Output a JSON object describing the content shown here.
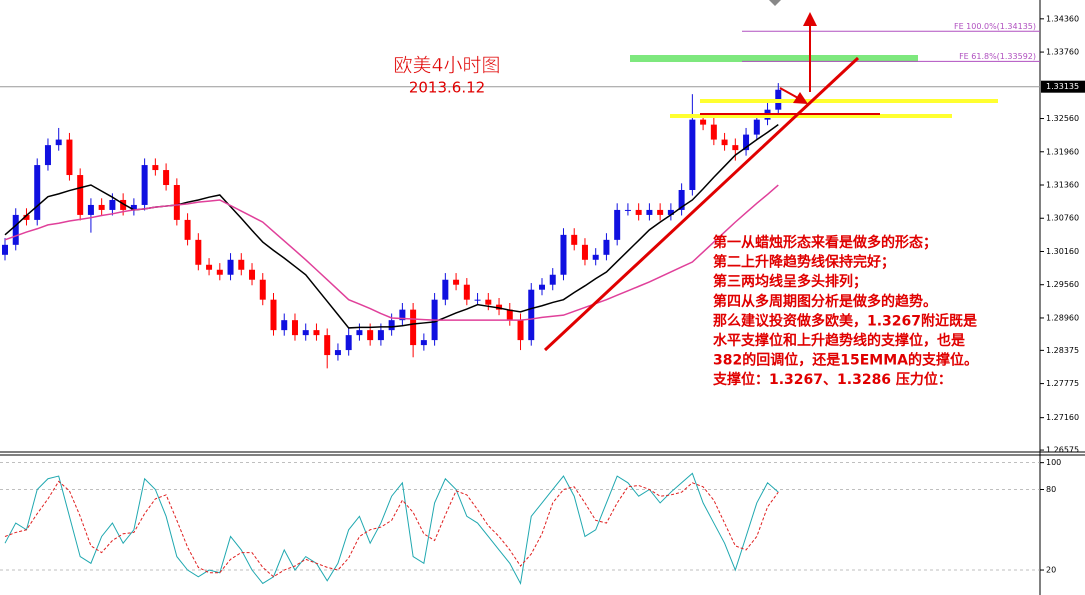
{
  "chart_data": [
    {
      "type": "candlestick",
      "title": "欧美4小时图",
      "subtitle": "2013.6.12",
      "up_color": "#1010e0",
      "down_color": "#ff0000",
      "open": [
        1.301,
        1.3028,
        1.3082,
        1.3073,
        1.3172,
        1.3208,
        1.3218,
        1.3154,
        1.3082,
        1.31,
        1.3091,
        1.3109,
        1.3091,
        1.31,
        1.3172,
        1.3163,
        1.3136,
        1.3073,
        1.3037,
        1.2992,
        1.2983,
        1.2974,
        1.3001,
        1.2983,
        1.2965,
        1.2929,
        1.2874,
        1.2892,
        1.2865,
        1.2874,
        1.2865,
        1.2829,
        1.2838,
        1.2865,
        1.2874,
        1.2856,
        1.2874,
        1.2892,
        1.2911,
        1.2847,
        1.2856,
        1.2929,
        1.2965,
        1.2956,
        1.2929,
        1.2929,
        1.292,
        1.2911,
        1.2892,
        1.2856,
        1.2947,
        1.2956,
        1.2974,
        1.3046,
        1.3028,
        1.3001,
        1.301,
        1.3037,
        1.3091,
        1.3091,
        1.3082,
        1.3091,
        1.3082,
        1.3091,
        1.3127,
        1.3254,
        1.3245,
        1.3218,
        1.3208,
        1.3199,
        1.3227,
        1.3254,
        1.3272
      ],
      "high": [
        1.304,
        1.3094,
        1.3094,
        1.3184,
        1.322,
        1.3239,
        1.323,
        1.3166,
        1.3112,
        1.3112,
        1.3121,
        1.3121,
        1.3112,
        1.3184,
        1.3184,
        1.3175,
        1.3148,
        1.3085,
        1.3049,
        1.3004,
        1.2995,
        1.3013,
        1.3013,
        1.2995,
        1.2977,
        1.2941,
        1.2904,
        1.2904,
        1.2886,
        1.2886,
        1.2877,
        1.285,
        1.2877,
        1.2886,
        1.2886,
        1.2886,
        1.2904,
        1.2923,
        1.2923,
        1.2868,
        1.2941,
        1.2977,
        1.2977,
        1.2968,
        1.2941,
        1.2941,
        1.2932,
        1.2923,
        1.2904,
        1.2959,
        1.2968,
        1.2986,
        1.3058,
        1.3058,
        1.304,
        1.3022,
        1.3049,
        1.3103,
        1.3103,
        1.3103,
        1.3103,
        1.3103,
        1.3103,
        1.3139,
        1.33,
        1.3266,
        1.3257,
        1.323,
        1.322,
        1.3239,
        1.3266,
        1.3284,
        1.332
      ],
      "low": [
        1.3,
        1.3018,
        1.3063,
        1.3063,
        1.3162,
        1.3198,
        1.3144,
        1.3072,
        1.305,
        1.3081,
        1.3081,
        1.3081,
        1.3081,
        1.309,
        1.3153,
        1.3126,
        1.3063,
        1.3027,
        1.2982,
        1.2973,
        1.2964,
        1.2964,
        1.2973,
        1.2955,
        1.2919,
        1.2864,
        1.2864,
        1.2855,
        1.2855,
        1.2855,
        1.2805,
        1.2819,
        1.2828,
        1.2855,
        1.2846,
        1.2846,
        1.2864,
        1.2882,
        1.2825,
        1.2837,
        1.2846,
        1.2919,
        1.2946,
        1.2919,
        1.2919,
        1.291,
        1.2901,
        1.2882,
        1.2838,
        1.2846,
        1.2937,
        1.2946,
        1.2964,
        1.3018,
        1.2991,
        1.2991,
        1.3,
        1.3027,
        1.3081,
        1.3072,
        1.3072,
        1.3072,
        1.3072,
        1.3081,
        1.3117,
        1.3235,
        1.3208,
        1.3198,
        1.318,
        1.3189,
        1.3217,
        1.3244,
        1.3262
      ],
      "close": [
        1.3028,
        1.3082,
        1.3073,
        1.3172,
        1.3208,
        1.3218,
        1.3154,
        1.3082,
        1.31,
        1.3091,
        1.3109,
        1.3091,
        1.31,
        1.3172,
        1.3163,
        1.3136,
        1.3073,
        1.3037,
        1.2992,
        1.2983,
        1.2974,
        1.3001,
        1.2983,
        1.2965,
        1.2929,
        1.2874,
        1.2892,
        1.2865,
        1.2874,
        1.2865,
        1.2829,
        1.2838,
        1.2865,
        1.2874,
        1.2856,
        1.2874,
        1.2892,
        1.2911,
        1.2847,
        1.2856,
        1.2929,
        1.2965,
        1.2956,
        1.2929,
        1.2929,
        1.292,
        1.2911,
        1.2892,
        1.2856,
        1.2947,
        1.2956,
        1.2974,
        1.3046,
        1.3028,
        1.3001,
        1.301,
        1.3037,
        1.3091,
        1.3091,
        1.3082,
        1.3091,
        1.3082,
        1.3091,
        1.3127,
        1.3254,
        1.3245,
        1.3218,
        1.3208,
        1.3199,
        1.3227,
        1.3254,
        1.3272,
        1.3308
      ],
      "overlays": [
        {
          "color": "#000000",
          "values": [
            1.3046,
            1.3063,
            1.3081,
            1.3098,
            1.3115,
            1.312,
            1.3126,
            1.3131,
            1.3136,
            1.3125,
            1.3114,
            1.3102,
            1.3091,
            1.3093,
            1.3096,
            1.3098,
            1.31,
            1.3105,
            1.3109,
            1.3114,
            1.3118,
            1.3097,
            1.3076,
            1.3054,
            1.3033,
            1.3018,
            1.3004,
            1.2989,
            1.2974,
            1.295,
            1.2926,
            1.2902,
            1.2878,
            1.2879,
            1.2879,
            1.288,
            1.288,
            1.2882,
            1.2885,
            1.2887,
            1.2889,
            1.2897,
            1.2905,
            1.2912,
            1.292,
            1.2917,
            1.2914,
            1.291,
            1.2907,
            1.2913,
            1.2918,
            1.2924,
            1.2929,
            1.2942,
            1.2954,
            1.2967,
            1.2979,
            1.2998,
            1.3017,
            1.3036,
            1.3055,
            1.3069,
            1.3082,
            1.3096,
            1.3109,
            1.3129,
            1.315,
            1.317,
            1.319,
            1.3204,
            1.3218,
            1.3231,
            1.3245
          ]
        },
        {
          "color": "#e0409a",
          "values": [
            1.3037,
            1.3044,
            1.3051,
            1.3057,
            1.3064,
            1.3067,
            1.3071,
            1.3074,
            1.3077,
            1.3081,
            1.3084,
            1.3088,
            1.3091,
            1.3093,
            1.3096,
            1.3098,
            1.31,
            1.3102,
            1.3105,
            1.3107,
            1.3109,
            1.3099,
            1.3089,
            1.3079,
            1.3069,
            1.3052,
            1.3035,
            1.3018,
            1.3001,
            1.2983,
            1.2965,
            1.2947,
            1.2929,
            1.2921,
            1.2913,
            1.2904,
            1.2896,
            1.2895,
            1.2894,
            1.2893,
            1.2892,
            1.2892,
            1.2892,
            1.2892,
            1.2892,
            1.2892,
            1.2892,
            1.2892,
            1.2892,
            1.2894,
            1.2897,
            1.2899,
            1.2901,
            1.2908,
            1.2915,
            1.2922,
            1.2929,
            1.2937,
            1.2945,
            1.2953,
            1.2961,
            1.297,
            1.2979,
            1.2988,
            1.2997,
            1.3015,
            1.3033,
            1.3051,
            1.3069,
            1.3086,
            1.3103,
            1.3119,
            1.3136
          ]
        }
      ],
      "ylim": [
        1.2654,
        1.347
      ],
      "yticks": [
        {
          "value": 1.3436,
          "label": "1.34360"
        },
        {
          "value": 1.3376,
          "label": "1.33760"
        },
        {
          "value": 1.3256,
          "label": "1.32560"
        },
        {
          "value": 1.3196,
          "label": "1.31960"
        },
        {
          "value": 1.3136,
          "label": "1.31360"
        },
        {
          "value": 1.3076,
          "label": "1.30760"
        },
        {
          "value": 1.3016,
          "label": "1.30160"
        },
        {
          "value": 1.2956,
          "label": "1.29560"
        },
        {
          "value": 1.2896,
          "label": "1.28960"
        },
        {
          "value": 1.28375,
          "label": "1.28375"
        },
        {
          "value": 1.27775,
          "label": "1.27775"
        },
        {
          "value": 1.2716,
          "label": "1.27160"
        },
        {
          "value": 1.26575,
          "label": "1.26575"
        }
      ],
      "current_price": {
        "value": 1.33135,
        "label": "1.33135"
      },
      "fib_levels": [
        {
          "value": 1.34135,
          "label": "FE 100.0%(1.34135)"
        },
        {
          "value": 1.33592,
          "label": "FE 61.8%(1.33592)"
        }
      ],
      "fib_color": "#b050c0",
      "notes": [
        "第一从蜡烛形态来看是做多的形态；",
        "第二上升降趋势线保持完好；",
        "第三两均线呈多头排列；",
        "第四从多周期图分析是做多的趋势。",
        "那么建议投资做多欧美，1.3267附近既是",
        "水平支撑位和上升趋势线的支撑位，也是",
        "382的回调位，还是15EMMA的支撑位。",
        "支撑位：1.3267、1.3286   压力位："
      ]
    },
    {
      "type": "line",
      "series": [
        {
          "color": "#20a8b0",
          "dashed": false,
          "values": [
            40,
            55,
            50,
            80,
            88,
            90,
            60,
            30,
            25,
            45,
            55,
            40,
            50,
            88,
            80,
            60,
            30,
            20,
            15,
            20,
            18,
            45,
            35,
            20,
            10,
            15,
            35,
            20,
            30,
            25,
            12,
            25,
            50,
            60,
            40,
            55,
            75,
            85,
            30,
            25,
            70,
            88,
            80,
            60,
            55,
            45,
            35,
            25,
            10,
            60,
            70,
            80,
            90,
            75,
            45,
            50,
            70,
            90,
            85,
            75,
            80,
            70,
            78,
            85,
            92,
            70,
            55,
            40,
            20,
            45,
            70,
            85,
            78
          ]
        },
        {
          "color": "#e02020",
          "dashed": true,
          "values": [
            45,
            48,
            50,
            62,
            73,
            86,
            79,
            60,
            38,
            33,
            42,
            47,
            48,
            62,
            73,
            76,
            57,
            37,
            22,
            18,
            18,
            28,
            33,
            33,
            22,
            15,
            20,
            23,
            28,
            25,
            22,
            20,
            29,
            45,
            50,
            52,
            57,
            72,
            63,
            47,
            42,
            61,
            79,
            76,
            65,
            53,
            45,
            35,
            23,
            32,
            47,
            70,
            80,
            82,
            70,
            57,
            55,
            70,
            82,
            83,
            80,
            75,
            76,
            78,
            85,
            82,
            72,
            55,
            38,
            35,
            45,
            67,
            78
          ]
        }
      ],
      "ylim": [
        1.4,
        105.7
      ],
      "yticks": [
        100,
        80,
        20
      ]
    }
  ]
}
